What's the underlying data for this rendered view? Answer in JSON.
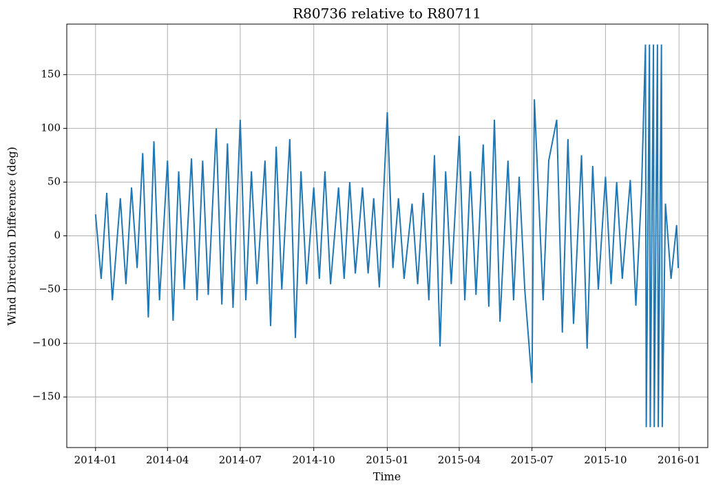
{
  "chart_data": {
    "type": "line",
    "title": "R80736 relative to R80711",
    "xlabel": "Time",
    "ylabel": "Wind Direction Difference (deg)",
    "grid": true,
    "xlim": [
      "2013-11-26",
      "2016-02-06"
    ],
    "ylim": [
      -197,
      197
    ],
    "xticks": [
      {
        "value": "2014-01-01",
        "label": "2014-01"
      },
      {
        "value": "2014-04-01",
        "label": "2014-04"
      },
      {
        "value": "2014-07-01",
        "label": "2014-07"
      },
      {
        "value": "2014-10-01",
        "label": "2014-10"
      },
      {
        "value": "2015-01-01",
        "label": "2015-01"
      },
      {
        "value": "2015-04-01",
        "label": "2015-04"
      },
      {
        "value": "2015-07-01",
        "label": "2015-07"
      },
      {
        "value": "2015-10-01",
        "label": "2015-10"
      },
      {
        "value": "2016-01-01",
        "label": "2016-01"
      }
    ],
    "yticks": [
      {
        "value": -150,
        "label": "−150"
      },
      {
        "value": -100,
        "label": "−100"
      },
      {
        "value": -50,
        "label": "−50"
      },
      0,
      50,
      100,
      150
    ],
    "x": [
      "2014-01-01",
      "2014-01-08",
      "2014-01-15",
      "2014-01-22",
      "2014-02-01",
      "2014-02-08",
      "2014-02-15",
      "2014-02-22",
      "2014-03-01",
      "2014-03-08",
      "2014-03-15",
      "2014-03-22",
      "2014-04-01",
      "2014-04-08",
      "2014-04-15",
      "2014-04-22",
      "2014-05-01",
      "2014-05-08",
      "2014-05-15",
      "2014-05-22",
      "2014-06-01",
      "2014-06-08",
      "2014-06-15",
      "2014-06-22",
      "2014-07-01",
      "2014-07-08",
      "2014-07-15",
      "2014-07-22",
      "2014-08-01",
      "2014-08-08",
      "2014-08-15",
      "2014-08-22",
      "2014-09-01",
      "2014-09-08",
      "2014-09-15",
      "2014-09-22",
      "2014-10-01",
      "2014-10-08",
      "2014-10-15",
      "2014-10-22",
      "2014-11-01",
      "2014-11-08",
      "2014-11-15",
      "2014-11-22",
      "2014-12-01",
      "2014-12-08",
      "2014-12-15",
      "2014-12-22",
      "2015-01-01",
      "2015-01-08",
      "2015-01-15",
      "2015-01-22",
      "2015-02-01",
      "2015-02-08",
      "2015-02-15",
      "2015-02-22",
      "2015-03-01",
      "2015-03-08",
      "2015-03-15",
      "2015-03-22",
      "2015-04-01",
      "2015-04-08",
      "2015-04-15",
      "2015-04-22",
      "2015-05-01",
      "2015-05-08",
      "2015-05-15",
      "2015-05-22",
      "2015-06-01",
      "2015-06-08",
      "2015-06-15",
      "2015-06-22",
      "2015-07-01",
      "2015-07-04",
      "2015-07-15",
      "2015-07-22",
      "2015-08-01",
      "2015-08-08",
      "2015-08-15",
      "2015-08-22",
      "2015-09-01",
      "2015-09-08",
      "2015-09-15",
      "2015-09-22",
      "2015-10-01",
      "2015-10-08",
      "2015-10-15",
      "2015-10-22",
      "2015-11-01",
      "2015-11-08",
      "2015-11-15",
      "2015-11-20",
      "2015-11-21",
      "2015-11-25",
      "2015-11-26",
      "2015-11-30",
      "2015-12-01",
      "2015-12-05",
      "2015-12-06",
      "2015-12-10",
      "2015-12-11",
      "2015-12-15",
      "2015-12-22",
      "2015-12-29",
      "2015-12-31"
    ],
    "series": [
      {
        "name": "R80736",
        "color": "#1f77b4",
        "values": [
          20,
          -40,
          40,
          -60,
          35,
          -45,
          45,
          -30,
          77,
          -76,
          88,
          -60,
          70,
          -79,
          60,
          -50,
          72,
          -60,
          70,
          -55,
          100,
          -64,
          86,
          -67,
          108,
          -60,
          60,
          -45,
          70,
          -84,
          83,
          -50,
          90,
          -95,
          60,
          -45,
          45,
          -40,
          60,
          -45,
          45,
          -40,
          50,
          -35,
          45,
          -35,
          35,
          -48,
          115,
          -30,
          35,
          -40,
          30,
          -45,
          40,
          -60,
          75,
          -103,
          60,
          -45,
          93,
          -60,
          60,
          -55,
          85,
          -66,
          108,
          -80,
          70,
          -60,
          55,
          -50,
          -137,
          127,
          -60,
          70,
          108,
          -90,
          90,
          -82,
          75,
          -105,
          65,
          -50,
          55,
          -45,
          50,
          -40,
          52,
          -65,
          40,
          178,
          -178,
          178,
          -178,
          178,
          -178,
          178,
          -178,
          178,
          -178,
          30,
          -40,
          10,
          -30
        ]
      }
    ]
  }
}
